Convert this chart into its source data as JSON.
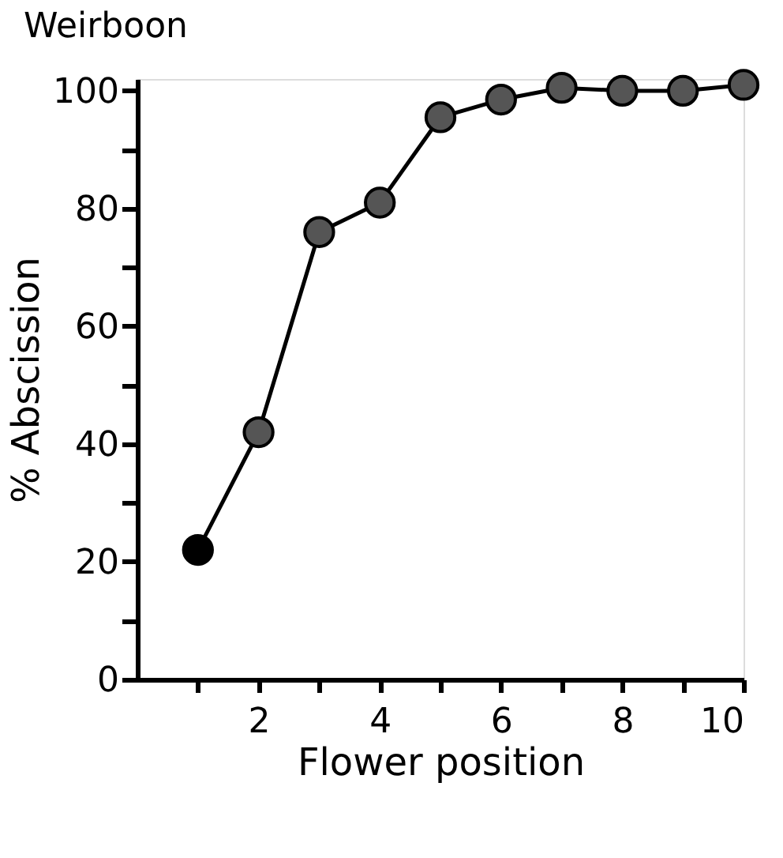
{
  "chart_data": {
    "type": "line",
    "title": "Weirboon",
    "xlabel": "Flower position",
    "ylabel": "% Abscission",
    "x": [
      1,
      2,
      3,
      4,
      5,
      6,
      7,
      8,
      9,
      10
    ],
    "series": [
      {
        "color": "#000000",
        "colors": [
          "#000000",
          "#555555",
          "#555555",
          "#555555",
          "#555555",
          "#555555",
          "#555555",
          "#555555",
          "#555555",
          "#555555"
        ],
        "values": [
          22,
          42,
          76,
          81,
          95.5,
          98.5,
          100.5,
          100,
          100,
          101
        ]
      }
    ],
    "xlim": [
      0,
      10
    ],
    "ylim": [
      0,
      102
    ],
    "xticks": [
      {
        "value": 1,
        "label": null
      },
      2,
      {
        "value": 3,
        "label": null
      },
      4,
      {
        "value": 5,
        "label": null
      },
      6,
      {
        "value": 7,
        "label": null
      },
      8,
      {
        "value": 9,
        "label": null
      },
      10
    ],
    "yticks": [
      0,
      {
        "value": 10,
        "label": null
      },
      20,
      {
        "value": 30,
        "label": null
      },
      40,
      {
        "value": 50,
        "label": null
      },
      60,
      {
        "value": 70,
        "label": null
      },
      80,
      {
        "value": 90,
        "label": null
      },
      100
    ],
    "marker": "circle",
    "line_style": "solid",
    "grid": false
  }
}
